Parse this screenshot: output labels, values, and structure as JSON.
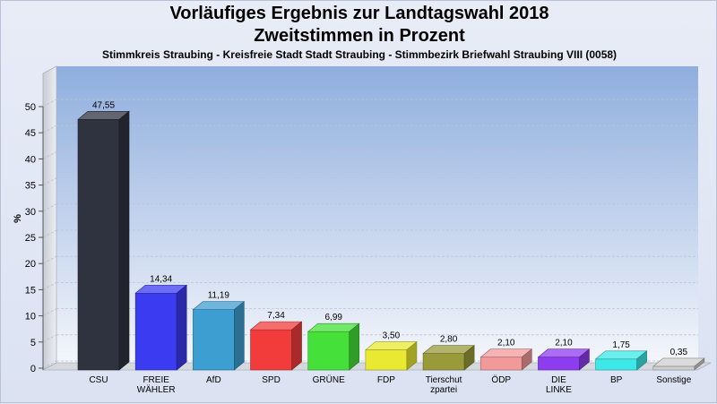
{
  "chart_data": {
    "type": "bar",
    "title": "Vorläufiges Ergebnis zur Landtagswahl 2018",
    "subtitle": "Zweitstimmen in Prozent",
    "subtitle2": "Stimmkreis Straubing - Kreisfreie Stadt Stadt Straubing - Stimmbezirk Briefwahl Straubing VIII (0058)",
    "ylabel": "%",
    "ylim": [
      0,
      50
    ],
    "yticks": [
      0,
      5,
      10,
      15,
      20,
      25,
      30,
      35,
      40,
      45,
      50
    ],
    "categories": [
      [
        "CSU"
      ],
      [
        "FREIE",
        "WÄHLER"
      ],
      [
        "AfD"
      ],
      [
        "SPD"
      ],
      [
        "GRÜNE"
      ],
      [
        "FDP"
      ],
      [
        "Tierschut",
        "zpartei"
      ],
      [
        "ÖDP"
      ],
      [
        "DIE",
        "LINKE"
      ],
      [
        "BP"
      ],
      [
        "Sonstige"
      ]
    ],
    "values": [
      47.55,
      14.34,
      11.19,
      7.34,
      6.99,
      3.5,
      2.8,
      2.1,
      2.1,
      1.75,
      0.35
    ],
    "value_labels": [
      "47,55",
      "14,34",
      "11,19",
      "7,34",
      "6,99",
      "3,50",
      "2,80",
      "2,10",
      "2,10",
      "1,75",
      "0,35"
    ],
    "colors": [
      "#2f3340",
      "#3b3bf2",
      "#3d9ed2",
      "#f23c3c",
      "#45e03a",
      "#e9e932",
      "#9a9a3a",
      "#f29999",
      "#8e3cf0",
      "#3ce8e8",
      "#cfcfcf"
    ],
    "grid": true
  }
}
